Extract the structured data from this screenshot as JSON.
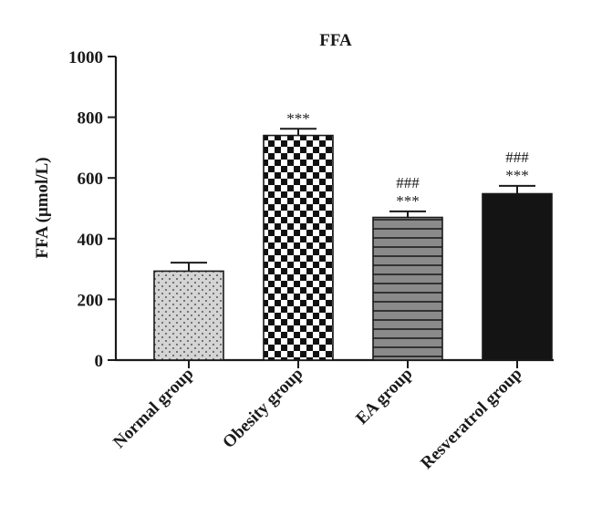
{
  "chart_data": {
    "type": "bar",
    "title": "FFA",
    "ylabel": "FFA (μmol/L)",
    "xlabel": "",
    "ylim": [
      0,
      1000
    ],
    "yticks": [
      0,
      200,
      400,
      600,
      800,
      1000
    ],
    "categories": [
      "Normal group",
      "Obesity group",
      "EA group",
      "Resveratrol group"
    ],
    "values": [
      293,
      740,
      470,
      548
    ],
    "errors": [
      28,
      22,
      20,
      26
    ],
    "annotations": [
      [],
      [
        "***"
      ],
      [
        "###",
        "***"
      ],
      [
        "###",
        "***"
      ]
    ],
    "bar_styles": [
      "dots",
      "checker",
      "stripes",
      "solid"
    ],
    "colors": {
      "dots_bg": "#d4d4d4",
      "dots_fg": "#555555",
      "checker_dark": "#111111",
      "checker_light": "#ffffff",
      "stripes_dark": "#333333",
      "stripes_light": "#8a8a8a",
      "solid": "#141414",
      "axis": "#1a1a1a"
    },
    "grid": false
  }
}
